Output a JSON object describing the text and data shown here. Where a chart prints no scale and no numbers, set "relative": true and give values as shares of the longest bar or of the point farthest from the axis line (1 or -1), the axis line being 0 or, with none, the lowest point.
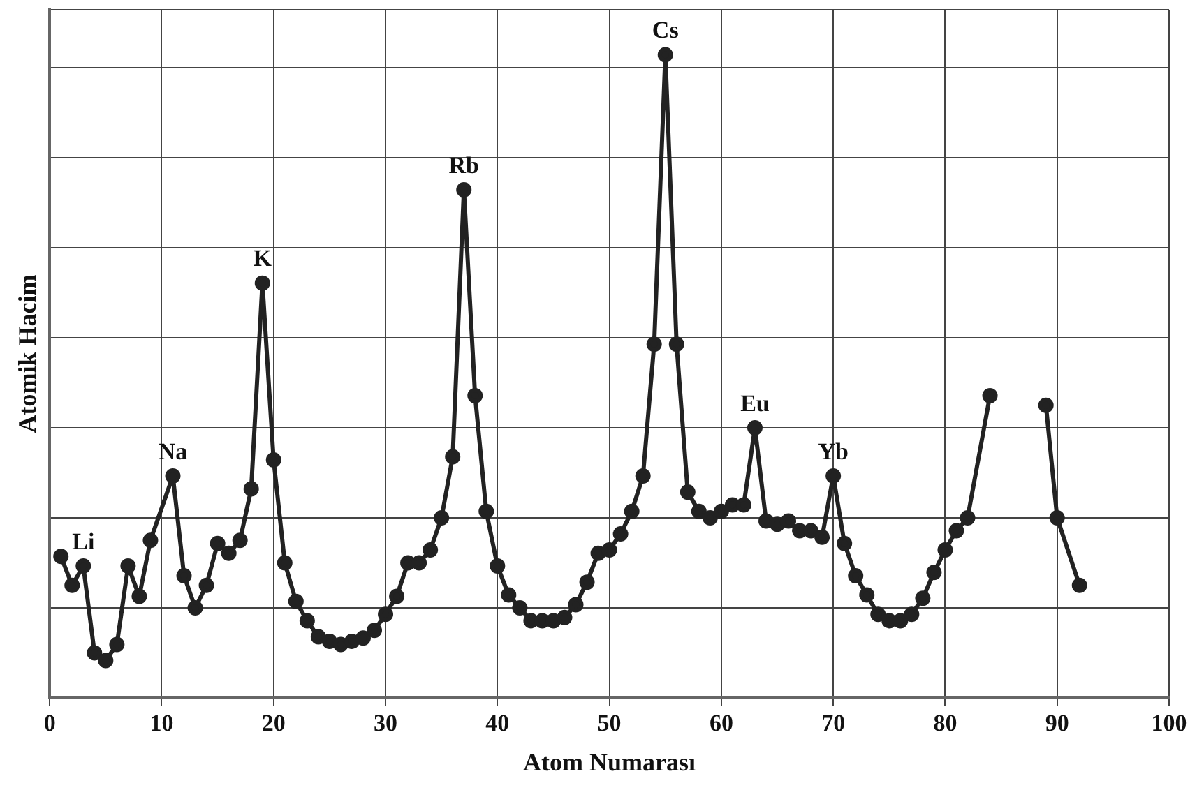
{
  "chart_data": {
    "type": "line",
    "xlabel": "Atom Numarası",
    "ylabel": "Atomik Hacim",
    "relative": true,
    "xlim": [
      0,
      100
    ],
    "xticks": [
      0,
      10,
      20,
      30,
      40,
      50,
      60,
      70,
      80,
      90,
      100
    ],
    "grid": true,
    "legend": false,
    "marker": "circle",
    "line_style": "solid",
    "series": [
      {
        "color": "#222222",
        "x": [
          1,
          2,
          3,
          4,
          5,
          6,
          7,
          8,
          9,
          11,
          12,
          13,
          14,
          15,
          16,
          17,
          18,
          19,
          20,
          21,
          22,
          23,
          24,
          25,
          26,
          27,
          28,
          29,
          30,
          31,
          32,
          33,
          34,
          35,
          36,
          37,
          38,
          39,
          40,
          41,
          42,
          43,
          44,
          45,
          46,
          47,
          48,
          49,
          50,
          51,
          52,
          53,
          54,
          55,
          56,
          57,
          58,
          59,
          60,
          61,
          62,
          63,
          64,
          65,
          66,
          67,
          68,
          69,
          70,
          71,
          72,
          73,
          74,
          75,
          76,
          77,
          78,
          79,
          80,
          81,
          82,
          84,
          86,
          89,
          90,
          92
        ],
        "values": [
          0.22,
          0.175,
          0.205,
          0.07,
          0.058,
          0.083,
          0.205,
          0.158,
          0.245,
          0.345,
          0.19,
          0.14,
          0.175,
          0.24,
          0.225,
          0.245,
          0.325,
          0.645,
          0.37,
          0.21,
          0.15,
          0.12,
          0.095,
          0.088,
          0.083,
          0.088,
          0.093,
          0.105,
          0.13,
          0.158,
          0.21,
          0.21,
          0.23,
          0.28,
          0.375,
          0.79,
          0.47,
          0.29,
          0.205,
          0.16,
          0.14,
          0.12,
          0.12,
          0.12,
          0.125,
          0.145,
          0.18,
          0.225,
          0.23,
          0.255,
          0.29,
          0.345,
          0.55,
          1.0,
          0.55,
          0.32,
          0.29,
          0.28,
          0.29,
          0.3,
          0.3,
          0.42,
          0.275,
          0.27,
          0.275,
          0.26,
          0.26,
          0.25,
          0.345,
          0.24,
          0.19,
          0.16,
          0.13,
          0.12,
          0.12,
          0.13,
          0.155,
          0.195,
          0.23,
          0.26,
          0.28,
          0.47,
          null,
          0.455,
          0.28,
          0.175
        ]
      }
    ],
    "annotations": [
      {
        "text": "Li",
        "x": 3,
        "y": 0.205
      },
      {
        "text": "Na",
        "x": 11,
        "y": 0.345
      },
      {
        "text": "K",
        "x": 19,
        "y": 0.645
      },
      {
        "text": "Rb",
        "x": 37,
        "y": 0.79
      },
      {
        "text": "Cs",
        "x": 55,
        "y": 1.0
      },
      {
        "text": "Eu",
        "x": 63,
        "y": 0.42
      },
      {
        "text": "Yb",
        "x": 70,
        "y": 0.345
      }
    ]
  }
}
